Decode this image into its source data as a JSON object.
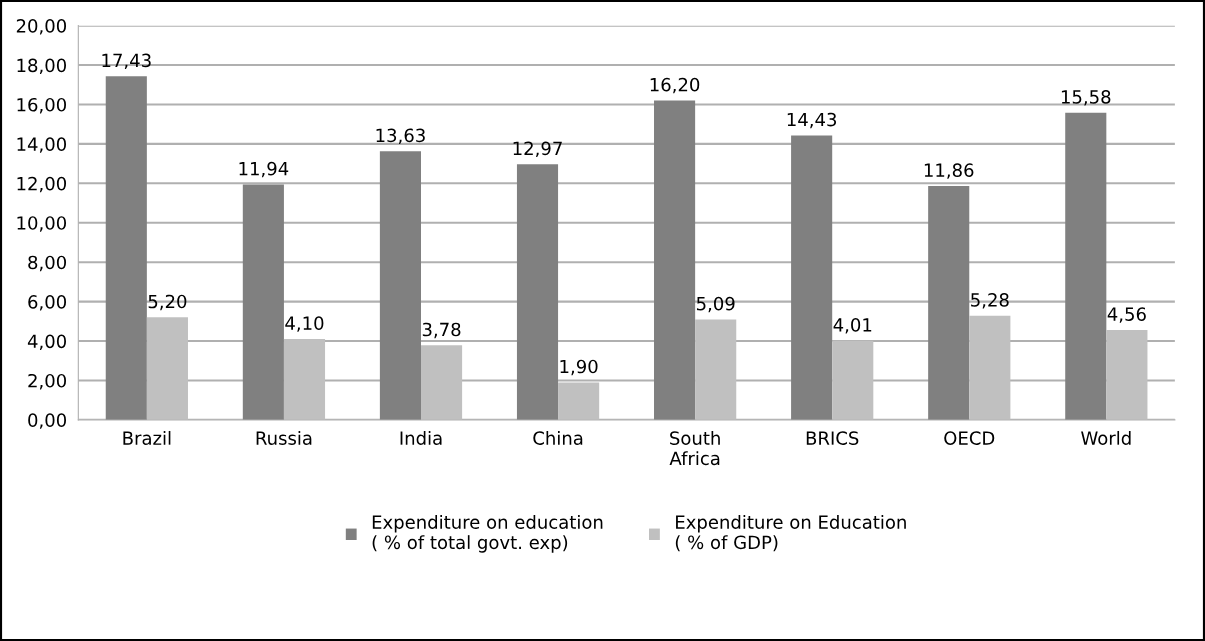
{
  "chart_data": {
    "type": "bar",
    "categories": [
      "Brazil",
      "Russia",
      "India",
      "China",
      "South\nAfrica",
      "BRICS",
      "OECD",
      "World"
    ],
    "series": [
      {
        "name": "Expenditure on education\n( % of total govt. exp)",
        "color": "#808080",
        "values": [
          17.43,
          11.94,
          13.63,
          12.97,
          16.2,
          14.43,
          11.86,
          15.58
        ],
        "value_labels": [
          "17,43",
          "11,94",
          "13,63",
          "12,97",
          "16,20",
          "14,43",
          "11,86",
          "15,58"
        ]
      },
      {
        "name": "Expenditure on Education\n( % of GDP)",
        "color": "#c0c0c0",
        "values": [
          5.2,
          4.1,
          3.78,
          1.9,
          5.09,
          4.01,
          5.28,
          4.56
        ],
        "value_labels": [
          "5,20",
          "4,10",
          "3,78",
          "1,90",
          "5,09",
          "4,01",
          "5,28",
          "4,56"
        ]
      }
    ],
    "ylim": [
      0,
      20
    ],
    "yticks": [
      {
        "value": 0,
        "label": "0,00"
      },
      {
        "value": 2,
        "label": "2,00"
      },
      {
        "value": 4,
        "label": "4,00"
      },
      {
        "value": 6,
        "label": "6,00"
      },
      {
        "value": 8,
        "label": "8,00"
      },
      {
        "value": 10,
        "label": "10,00"
      },
      {
        "value": 12,
        "label": "12,00"
      },
      {
        "value": 14,
        "label": "14,00"
      },
      {
        "value": 16,
        "label": "16,00"
      },
      {
        "value": 18,
        "label": "18,00"
      },
      {
        "value": 20,
        "label": "20,00"
      }
    ],
    "grid": "y",
    "legend": "bottom"
  }
}
